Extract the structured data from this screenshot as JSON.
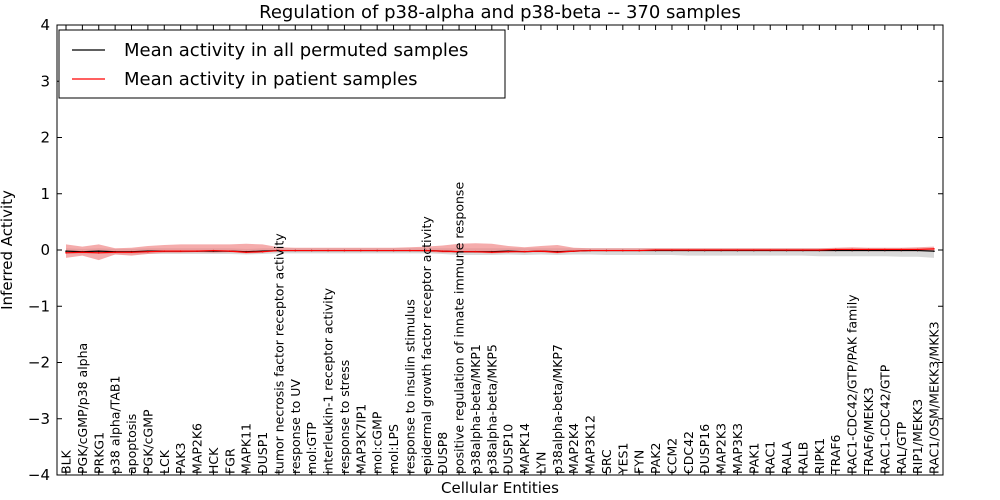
{
  "chart_data": {
    "type": "line",
    "title": "Regulation of p38-alpha and p38-beta -- 370 samples",
    "xlabel": "Cellular Entities",
    "ylabel": "Inferred Activity",
    "ylim": [
      -4,
      4
    ],
    "yticks": [
      -4,
      -3,
      -2,
      -1,
      0,
      1,
      2,
      3,
      4
    ],
    "ytick_labels": [
      "−4",
      "−3",
      "−2",
      "−1",
      "0",
      "1",
      "2",
      "3",
      "4"
    ],
    "grid": false,
    "legend_position": "top-left",
    "categories": [
      "BLK",
      "PGK/cGMP/p38 alpha",
      "PRKG1",
      "p38 alpha/TAB1",
      "apoptosis",
      "PGK/cGMP",
      "LCK",
      "PAK3",
      "MAP2K6",
      "HCK",
      "FGR",
      "MAPK11",
      "DUSP1",
      "tumor necrosis factor receptor activity",
      "response to UV",
      "mol:GTP",
      "interleukin-1 receptor activity",
      "response to stress",
      "MAP3K7IP1",
      "mol:cGMP",
      "mol:LPS",
      "response to insulin stimulus",
      "epidermal growth factor receptor activity",
      "DUSP8",
      "positive regulation of innate immune response",
      "p38alpha-beta/MKP1",
      "p38alpha-beta/MKP5",
      "DUSP10",
      "MAPK14",
      "LYN",
      "p38alpha-beta/MKP7",
      "MAP2K4",
      "MAP3K12",
      "SRC",
      "YES1",
      "FYN",
      "PAK2",
      "CCM2",
      "CDC42",
      "DUSP16",
      "MAP2K3",
      "MAP3K3",
      "PAK1",
      "RAC1",
      "RALA",
      "RALB",
      "RIPK1",
      "TRAF6",
      "RAC1-CDC42/GTP/PAK family",
      "TRAF6/MEKK3",
      "RAC1-CDC42/GTP",
      "RAL/GTP",
      "RIP1/MEKK3",
      "RAC1/OSM/MEKK3/MKK3"
    ],
    "series": [
      {
        "name": "Mean activity in all permuted samples",
        "color": "#000000",
        "band_color": "#bfbfbf",
        "values": [
          -0.02,
          -0.03,
          -0.02,
          -0.03,
          -0.03,
          -0.02,
          -0.02,
          -0.02,
          -0.02,
          -0.02,
          -0.02,
          -0.03,
          -0.02,
          -0.01,
          -0.01,
          -0.01,
          -0.01,
          -0.01,
          -0.01,
          -0.01,
          -0.01,
          -0.01,
          -0.01,
          -0.02,
          -0.03,
          -0.03,
          -0.03,
          -0.02,
          -0.03,
          -0.02,
          -0.03,
          -0.02,
          -0.01,
          -0.01,
          -0.01,
          -0.01,
          -0.01,
          -0.01,
          -0.01,
          -0.01,
          -0.01,
          -0.01,
          -0.01,
          -0.01,
          -0.01,
          -0.01,
          -0.01,
          -0.01,
          -0.01,
          -0.01,
          -0.01,
          -0.01,
          -0.01,
          -0.02
        ],
        "lower": [
          -0.07,
          -0.08,
          -0.07,
          -0.08,
          -0.08,
          -0.07,
          -0.07,
          -0.07,
          -0.07,
          -0.07,
          -0.07,
          -0.08,
          -0.07,
          -0.06,
          -0.06,
          -0.06,
          -0.06,
          -0.06,
          -0.06,
          -0.06,
          -0.06,
          -0.06,
          -0.06,
          -0.07,
          -0.09,
          -0.09,
          -0.09,
          -0.08,
          -0.09,
          -0.08,
          -0.09,
          -0.08,
          -0.08,
          -0.09,
          -0.09,
          -0.09,
          -0.09,
          -0.09,
          -0.1,
          -0.1,
          -0.1,
          -0.1,
          -0.1,
          -0.1,
          -0.1,
          -0.1,
          -0.11,
          -0.11,
          -0.11,
          -0.11,
          -0.11,
          -0.12,
          -0.12,
          -0.14
        ],
        "upper": [
          0.03,
          0.02,
          0.03,
          0.02,
          0.02,
          0.03,
          0.03,
          0.03,
          0.03,
          0.03,
          0.03,
          0.02,
          0.03,
          0.03,
          0.03,
          0.03,
          0.03,
          0.03,
          0.03,
          0.03,
          0.03,
          0.03,
          0.03,
          0.03,
          0.03,
          0.03,
          0.03,
          0.03,
          0.03,
          0.03,
          0.03,
          0.03,
          0.03,
          0.03,
          0.03,
          0.03,
          0.03,
          0.03,
          0.03,
          0.03,
          0.03,
          0.03,
          0.03,
          0.03,
          0.03,
          0.03,
          0.03,
          0.03,
          0.03,
          0.03,
          0.03,
          0.03,
          0.03,
          0.03
        ]
      },
      {
        "name": "Mean activity in patient samples",
        "color": "#ff0000",
        "band_color": "#f08080",
        "values": [
          -0.05,
          -0.04,
          -0.05,
          -0.04,
          -0.04,
          -0.03,
          -0.02,
          -0.02,
          -0.02,
          -0.01,
          -0.02,
          -0.04,
          -0.03,
          -0.01,
          -0.01,
          -0.01,
          -0.01,
          -0.01,
          -0.01,
          -0.01,
          -0.01,
          -0.01,
          -0.01,
          -0.02,
          -0.03,
          -0.03,
          -0.04,
          -0.03,
          -0.03,
          -0.02,
          -0.04,
          -0.02,
          -0.01,
          -0.01,
          -0.01,
          -0.01,
          0.0,
          0.0,
          0.0,
          0.0,
          0.0,
          0.0,
          0.0,
          0.0,
          0.0,
          0.0,
          0.0,
          0.01,
          0.01,
          0.01,
          0.01,
          0.01,
          0.01,
          0.02
        ],
        "lower": [
          -0.14,
          -0.1,
          -0.18,
          -0.08,
          -0.1,
          -0.07,
          -0.05,
          -0.05,
          -0.04,
          -0.05,
          -0.04,
          -0.06,
          -0.05,
          -0.02,
          -0.02,
          -0.02,
          -0.02,
          -0.02,
          -0.02,
          -0.02,
          -0.02,
          -0.02,
          -0.03,
          -0.05,
          -0.05,
          -0.05,
          -0.06,
          -0.05,
          -0.04,
          -0.04,
          -0.06,
          -0.03,
          -0.02,
          -0.02,
          -0.02,
          -0.02,
          -0.02,
          -0.02,
          -0.02,
          -0.02,
          -0.02,
          -0.02,
          -0.02,
          -0.02,
          -0.02,
          -0.02,
          -0.02,
          -0.02,
          -0.02,
          -0.02,
          -0.02,
          -0.02,
          -0.02,
          -0.02
        ],
        "upper": [
          0.1,
          0.06,
          0.1,
          0.03,
          0.04,
          0.07,
          0.09,
          0.1,
          0.1,
          0.1,
          0.1,
          0.11,
          0.1,
          0.05,
          0.04,
          0.04,
          0.04,
          0.04,
          0.04,
          0.04,
          0.04,
          0.05,
          0.06,
          0.08,
          0.11,
          0.12,
          0.11,
          0.07,
          0.05,
          0.07,
          0.09,
          0.04,
          0.03,
          0.03,
          0.03,
          0.03,
          0.03,
          0.03,
          0.03,
          0.03,
          0.03,
          0.03,
          0.03,
          0.03,
          0.03,
          0.03,
          0.03,
          0.04,
          0.05,
          0.04,
          0.04,
          0.04,
          0.05,
          0.06
        ]
      }
    ]
  }
}
